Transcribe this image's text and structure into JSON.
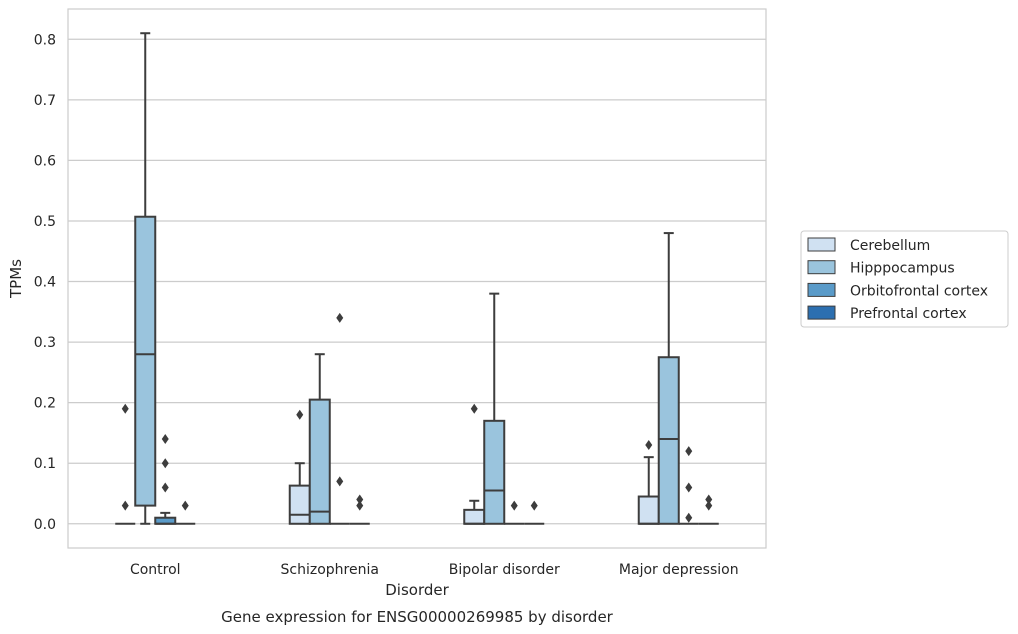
{
  "chart_data": {
    "type": "box",
    "caption": "Gene expression for ENSG00000269985 by disorder",
    "xlabel": "Disorder",
    "ylabel": "TPMs",
    "ylim": [
      -0.04,
      0.85
    ],
    "yticks": [
      "0.0",
      "0.1",
      "0.2",
      "0.3",
      "0.4",
      "0.5",
      "0.6",
      "0.7",
      "0.8"
    ],
    "grid": true,
    "legend_position": "right",
    "categories": [
      "Control",
      "Schizophrenia",
      "Bipolar disorder",
      "Major depression"
    ],
    "series": [
      {
        "name": "Cerebellum",
        "color": "#d0e1f2",
        "boxes": [
          {
            "min": 0,
            "q1": 0,
            "median": 0,
            "q3": 0,
            "max": 0,
            "outliers": [
              0.03,
              0.19
            ]
          },
          {
            "min": 0,
            "q1": 0,
            "median": 0.015,
            "q3": 0.063,
            "max": 0.1,
            "outliers": [
              0.18
            ]
          },
          {
            "min": 0,
            "q1": 0,
            "median": 0,
            "q3": 0.023,
            "max": 0.038,
            "outliers": [
              0.19
            ]
          },
          {
            "min": 0,
            "q1": 0,
            "median": 0,
            "q3": 0.045,
            "max": 0.11,
            "outliers": [
              0.13
            ]
          }
        ]
      },
      {
        "name": "Hipppocampus",
        "color": "#9ac4dd",
        "boxes": [
          {
            "min": 0,
            "q1": 0.03,
            "median": 0.28,
            "q3": 0.507,
            "max": 0.81,
            "outliers": []
          },
          {
            "min": 0,
            "q1": 0,
            "median": 0.02,
            "q3": 0.205,
            "max": 0.28,
            "outliers": []
          },
          {
            "min": 0,
            "q1": 0,
            "median": 0.055,
            "q3": 0.17,
            "max": 0.38,
            "outliers": []
          },
          {
            "min": 0,
            "q1": 0,
            "median": 0.14,
            "q3": 0.275,
            "max": 0.48,
            "outliers": []
          }
        ]
      },
      {
        "name": "Orbitofrontal cortex",
        "color": "#5a9bc9",
        "boxes": [
          {
            "min": 0,
            "q1": 0,
            "median": 0,
            "q3": 0.01,
            "max": 0.018,
            "outliers": [
              0.06,
              0.1,
              0.14
            ]
          },
          {
            "min": 0,
            "q1": 0,
            "median": 0,
            "q3": 0,
            "max": 0,
            "outliers": [
              0.07,
              0.34
            ]
          },
          {
            "min": 0,
            "q1": 0,
            "median": 0,
            "q3": 0,
            "max": 0,
            "outliers": [
              0.03
            ]
          },
          {
            "min": 0,
            "q1": 0,
            "median": 0,
            "q3": 0,
            "max": 0,
            "outliers": [
              0.01,
              0.06,
              0.12
            ]
          }
        ]
      },
      {
        "name": "Prefrontal cortex",
        "color": "#2c6fb0",
        "boxes": [
          {
            "min": 0,
            "q1": 0,
            "median": 0,
            "q3": 0,
            "max": 0,
            "outliers": [
              0.03
            ]
          },
          {
            "min": 0,
            "q1": 0,
            "median": 0,
            "q3": 0,
            "max": 0,
            "outliers": [
              0.03,
              0.04
            ]
          },
          {
            "min": 0,
            "q1": 0,
            "median": 0,
            "q3": 0,
            "max": 0,
            "outliers": [
              0.03
            ]
          },
          {
            "min": 0,
            "q1": 0,
            "median": 0,
            "q3": 0,
            "max": 0,
            "outliers": [
              0.03,
              0.04
            ]
          }
        ]
      }
    ]
  }
}
